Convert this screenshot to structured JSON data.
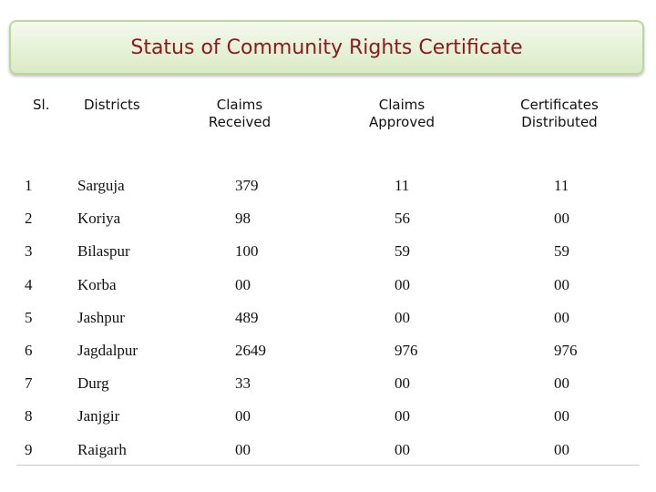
{
  "header": {
    "title": "Status of Community Rights Certificate"
  },
  "table": {
    "columns": [
      "Sl.",
      "Districts",
      "Claims Received",
      "Claims Approved",
      "Certificates Distributed"
    ],
    "rows": [
      [
        "1",
        "Sarguja",
        "379",
        "11",
        "11"
      ],
      [
        "2",
        "Koriya",
        "98",
        "56",
        "00"
      ],
      [
        "3",
        "Bilaspur",
        "100",
        "59",
        "59"
      ],
      [
        "4",
        "Korba",
        "00",
        "00",
        "00"
      ],
      [
        "5",
        "Jashpur",
        "489",
        "00",
        "00"
      ],
      [
        "6",
        "Jagdalpur",
        "2649",
        "976",
        "976"
      ],
      [
        "7",
        "Durg",
        "33",
        "00",
        "00"
      ],
      [
        "8",
        "Janjgir",
        "00",
        "00",
        "00"
      ],
      [
        "9",
        "Raigarh",
        "00",
        "00",
        "00"
      ]
    ]
  }
}
